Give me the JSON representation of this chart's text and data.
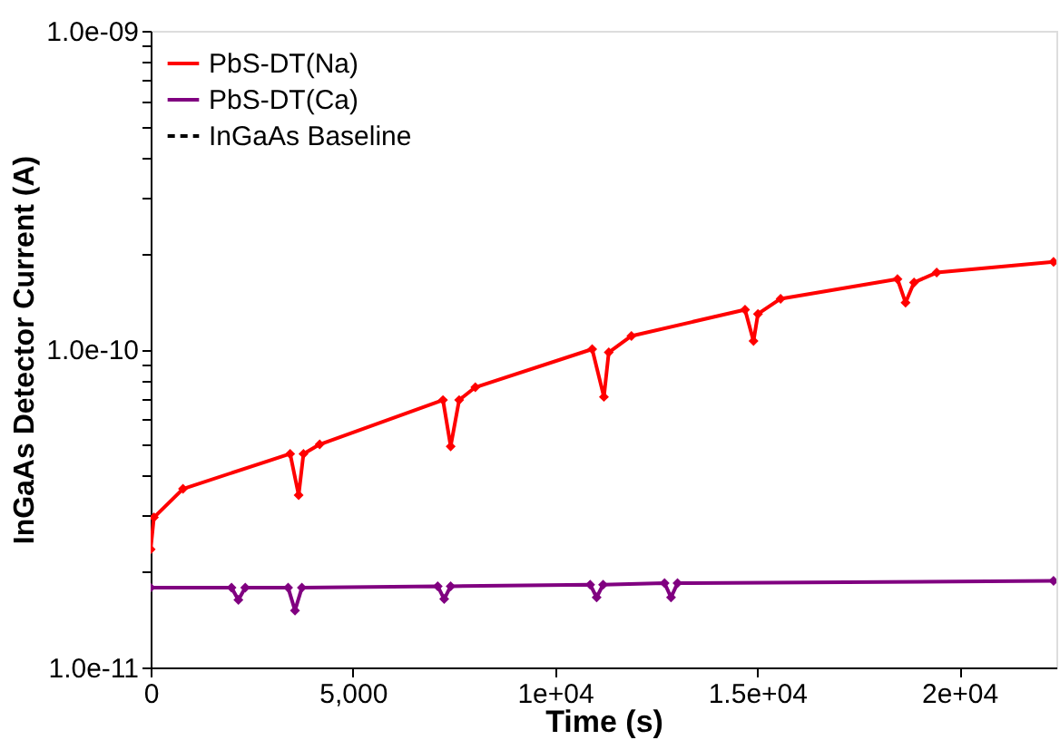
{
  "chart_data": {
    "type": "line",
    "xlabel": "Time (s)",
    "ylabel": "InGaAs Detector Current (A)",
    "log": "y",
    "xlim": [
      0,
      22400
    ],
    "ylim": [
      1e-11,
      1e-09
    ],
    "xticks": [
      0,
      {
        "value": 5000,
        "label": "5,000"
      },
      {
        "value": 10000,
        "label": "1e+04"
      },
      {
        "value": 15000,
        "label": "1.5e+04"
      },
      {
        "value": 20000,
        "label": "2e+04"
      }
    ],
    "yticks": [
      {
        "value": 1e-11,
        "label": "1.0e-11"
      },
      {
        "value": 2e-11,
        "label": null
      },
      {
        "value": 3e-11,
        "label": null
      },
      {
        "value": 4e-11,
        "label": null
      },
      {
        "value": 5e-11,
        "label": null
      },
      {
        "value": 6e-11,
        "label": null
      },
      {
        "value": 7e-11,
        "label": null
      },
      {
        "value": 8e-11,
        "label": null
      },
      {
        "value": 9e-11,
        "label": null
      },
      {
        "value": 1e-10,
        "label": "1.0e-10"
      },
      {
        "value": 2e-10,
        "label": null
      },
      {
        "value": 3e-10,
        "label": null
      },
      {
        "value": 4e-10,
        "label": null
      },
      {
        "value": 5e-10,
        "label": null
      },
      {
        "value": 6e-10,
        "label": null
      },
      {
        "value": 7e-10,
        "label": null
      },
      {
        "value": 8e-10,
        "label": null
      },
      {
        "value": 9e-10,
        "label": null
      },
      {
        "value": 1e-09,
        "label": "1.0e-09"
      }
    ],
    "grid": false,
    "legend": "top left",
    "marker": "diamond",
    "series": [
      {
        "name": "PbS-DT(Na)",
        "color": "#ff0000",
        "line_style": "solid",
        "x": [
          0,
          80,
          800,
          3450,
          3660,
          3780,
          4180,
          7230,
          7420,
          7630,
          8030,
          10920,
          11210,
          11330,
          11890,
          14700,
          14910,
          15020,
          15580,
          18470,
          18670,
          18880,
          19440,
          22330
        ],
        "values": [
          2.35e-11,
          2.96e-11,
          3.64e-11,
          4.69e-11,
          3.48e-11,
          4.69e-11,
          5.02e-11,
          6.92e-11,
          4.95e-11,
          6.92e-11,
          7.59e-11,
          1e-10,
          7.08e-11,
          9.77e-11,
          1.1e-10,
          1.33e-10,
          1.06e-10,
          1.29e-10,
          1.44e-10,
          1.66e-10,
          1.4e-10,
          1.62e-10,
          1.74e-10,
          1.88e-10
        ]
      },
      {
        "name": "PbS-DT(Ca)",
        "color": "#800080",
        "line_style": "solid",
        "x": [
          0,
          2000,
          2170,
          2340,
          3400,
          3570,
          3740,
          7100,
          7260,
          7420,
          10870,
          11030,
          11190,
          12710,
          12870,
          13030,
          22330
        ],
        "values": [
          1.78e-11,
          1.78e-11,
          1.63e-11,
          1.78e-11,
          1.78e-11,
          1.51e-11,
          1.78e-11,
          1.8e-11,
          1.64e-11,
          1.8e-11,
          1.82e-11,
          1.66e-11,
          1.82e-11,
          1.84e-11,
          1.66e-11,
          1.84e-11,
          1.87e-11
        ]
      },
      {
        "name": "InGaAs Baseline",
        "color": "#000000",
        "line_style": "dashed"
      }
    ]
  }
}
